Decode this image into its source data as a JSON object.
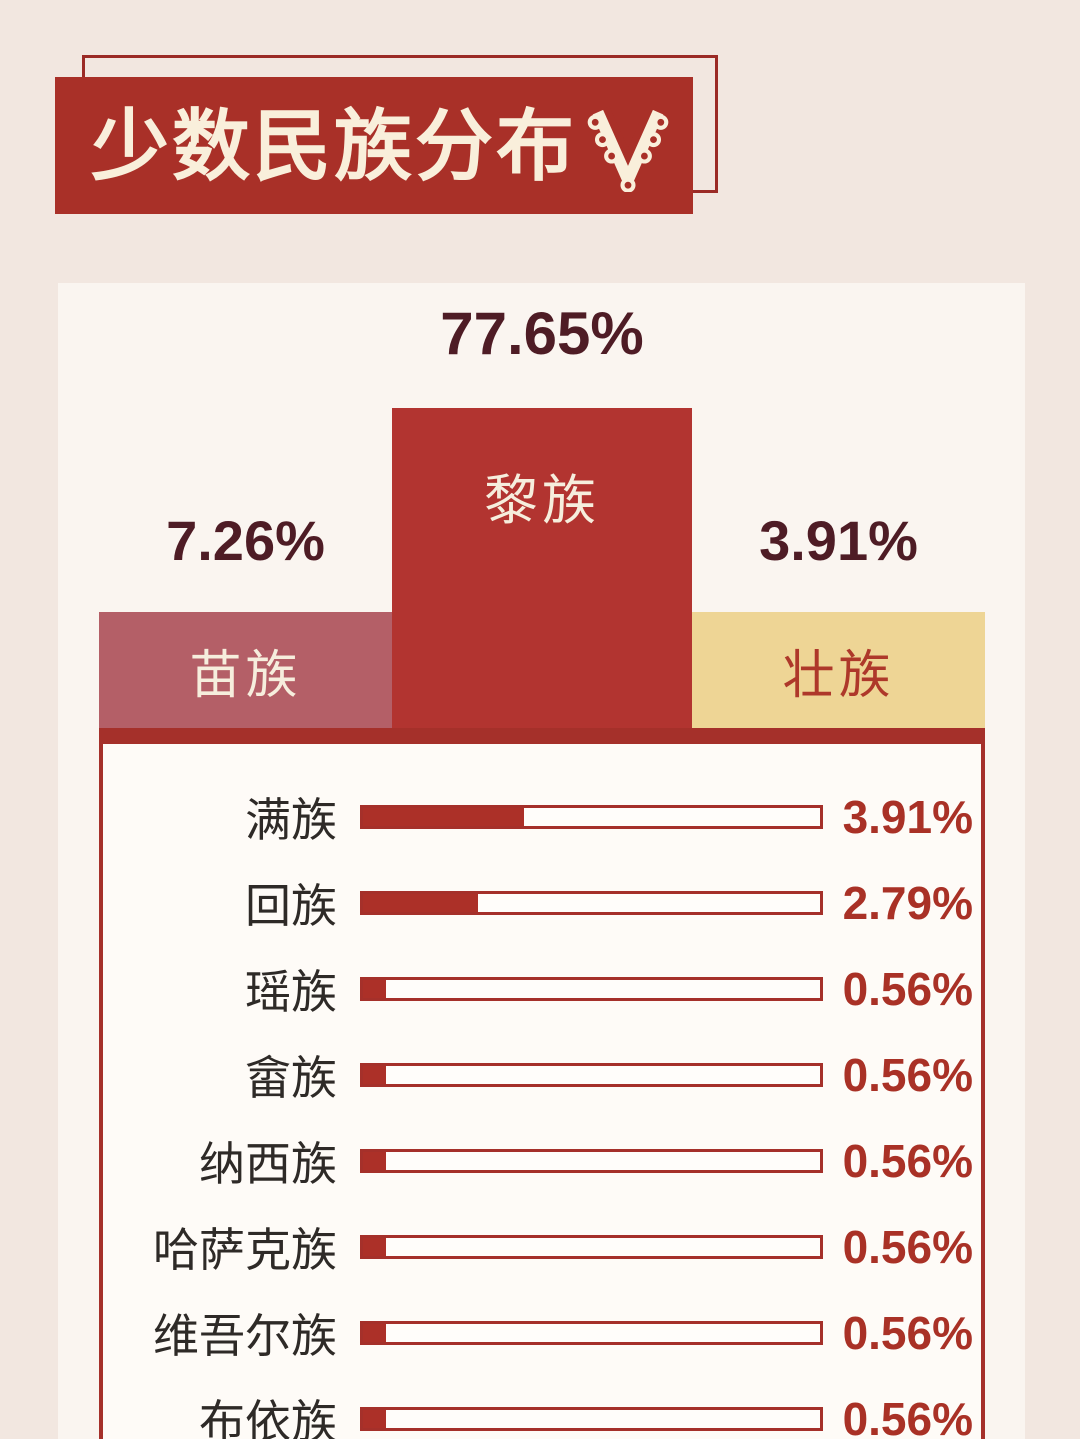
{
  "header": {
    "title": "少数民族分布",
    "icon": "ethnic-pendant-icon"
  },
  "colors": {
    "page_bg": "#f2e7e0",
    "panel_bg": "#faf5f0",
    "brand_red": "#a93028",
    "bar_red": "#b23430",
    "bar_mauve": "#b45f67",
    "bar_gold": "#eed595",
    "baseline_red": "#a5302a",
    "dark_maroon_text": "#4e1c25",
    "row_label_text": "#2e2a27",
    "row_percent_red": "#a93126",
    "cream_text": "#f9efdb"
  },
  "chart_data": {
    "type": "bar",
    "title": "少数民族分布",
    "unit": "%",
    "podium": {
      "categories": [
        "苗族",
        "黎族",
        "壮族"
      ],
      "values": [
        7.26,
        77.65,
        3.91
      ],
      "labels": [
        "7.26%",
        "77.65%",
        "3.91%"
      ]
    },
    "list": {
      "categories": [
        "满族",
        "回族",
        "瑶族",
        "畲族",
        "纳西族",
        "哈萨克族",
        "维吾尔族",
        "布依族"
      ],
      "values": [
        3.91,
        2.79,
        0.56,
        0.56,
        0.56,
        0.56,
        0.56,
        0.56
      ],
      "labels": [
        "3.91%",
        "2.79%",
        "0.56%",
        "0.56%",
        "0.56%",
        "0.56%",
        "0.56%",
        "0.56%"
      ]
    }
  }
}
